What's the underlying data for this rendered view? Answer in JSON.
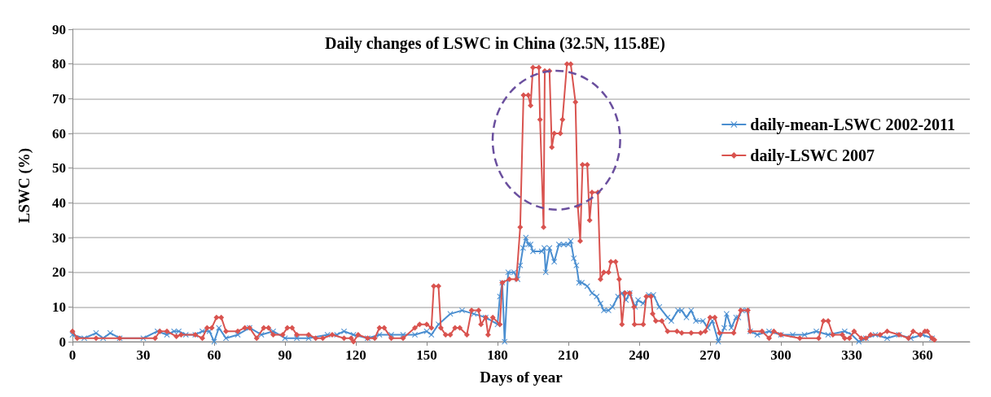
{
  "chart_data": {
    "type": "line",
    "title": "Daily changes of LSWC in China (32.5N, 115.8E)",
    "xlabel": "Days of year",
    "ylabel": "LSWC (%)",
    "xlim": [
      0,
      380
    ],
    "xticks": [
      0,
      30,
      60,
      90,
      120,
      150,
      180,
      210,
      240,
      270,
      300,
      330,
      360
    ],
    "ylim": [
      0,
      90
    ],
    "yticks": [
      0,
      10,
      20,
      30,
      40,
      50,
      60,
      70,
      80,
      90
    ],
    "grid": "y",
    "legend": "top right",
    "line_style": "solid",
    "series": [
      {
        "name": "daily-mean-LSWC 2002-2011",
        "color": "#4a8ed0",
        "marker": "cross",
        "x": [
          0,
          5,
          10,
          13,
          16,
          20,
          30,
          36,
          40,
          43,
          45,
          48,
          52,
          55,
          58,
          60,
          62,
          65,
          70,
          75,
          80,
          85,
          90,
          95,
          100,
          108,
          112,
          115,
          119,
          125,
          130,
          135,
          140,
          145,
          150,
          152,
          155,
          160,
          165,
          170,
          175,
          180,
          181,
          182,
          183,
          184.5,
          187,
          188.5,
          189.6,
          190.8,
          192,
          193,
          194,
          195,
          198.7,
          199.8,
          200.4,
          202,
          204,
          206,
          208,
          210,
          211,
          212.3,
          213.4,
          214.5,
          215.7,
          218,
          220,
          222,
          223.6,
          225,
          227,
          228.7,
          231,
          232.7,
          234.4,
          236,
          238.3,
          239.5,
          241.7,
          244,
          246,
          248.5,
          252,
          253.6,
          256.4,
          258,
          260,
          262,
          264,
          267,
          269,
          271,
          273.5,
          276,
          277,
          279,
          281,
          282,
          283.5,
          285.7,
          287,
          290,
          295,
          300,
          305,
          310,
          315,
          320,
          327,
          330,
          333,
          336,
          340,
          345,
          350,
          355,
          360,
          364
        ],
        "values": [
          2,
          1,
          2.5,
          1,
          2.5,
          1,
          1,
          3,
          2,
          3,
          3,
          2,
          2,
          3,
          3,
          0,
          4,
          1,
          2,
          4,
          2,
          3,
          1,
          1,
          1,
          2,
          2,
          3,
          2,
          1,
          2,
          2,
          2,
          2,
          3,
          2,
          5,
          8,
          9,
          8,
          7,
          5,
          13,
          17,
          0,
          20,
          20,
          18,
          22,
          27,
          30,
          28,
          28,
          26,
          26,
          27,
          20,
          27,
          23,
          28,
          28,
          28,
          29,
          24,
          22,
          17,
          17,
          16,
          14,
          13,
          11,
          9,
          9,
          10,
          13,
          14,
          12,
          14,
          10,
          12,
          11,
          13.5,
          13.5,
          10,
          7,
          6,
          9,
          9,
          7,
          9,
          6,
          6,
          4,
          6,
          0,
          4,
          8,
          4,
          7,
          7,
          9,
          9,
          3,
          2,
          3,
          2,
          2,
          2,
          3,
          2,
          3,
          2,
          0,
          1,
          2,
          1,
          2,
          1,
          2,
          1
        ]
      },
      {
        "name": "daily-LSWC 2007",
        "color": "#d9534f",
        "marker": "diamond",
        "x": [
          0,
          2,
          10,
          20,
          35,
          37,
          40,
          44,
          46,
          52,
          55,
          57,
          59,
          61,
          63,
          65,
          70,
          73,
          75,
          78,
          81,
          83,
          85,
          89,
          91,
          93,
          95,
          100,
          103,
          106,
          110,
          115,
          118,
          119,
          121,
          125,
          128,
          130,
          132,
          135,
          140,
          145,
          147,
          150,
          152,
          153,
          155,
          156,
          158,
          160,
          162,
          164,
          167,
          169,
          172,
          173,
          175,
          176,
          178,
          181,
          182,
          185,
          188,
          189.6,
          191,
          193,
          194,
          195,
          197.5,
          198,
          199.5,
          200,
          202,
          203,
          204,
          206.6,
          207.5,
          209.4,
          211,
          213,
          214,
          215,
          216,
          218,
          219,
          220,
          222.5,
          223.6,
          225,
          227,
          228,
          230,
          231.5,
          232.7,
          234,
          236,
          237.8,
          238,
          241.7,
          243,
          245,
          245.7,
          247,
          249.6,
          252,
          256,
          258,
          262,
          266,
          268,
          270,
          272,
          274,
          280,
          283,
          286,
          287,
          292,
          295,
          297,
          300,
          308,
          316,
          318,
          320,
          322,
          326,
          327,
          329,
          331,
          334,
          336,
          338,
          342,
          345,
          350,
          354,
          356,
          359,
          361,
          362,
          364,
          365
        ],
        "values": [
          3,
          1,
          1,
          1,
          1,
          3,
          3,
          1.5,
          2,
          2,
          1,
          4,
          4,
          7,
          7,
          3,
          3,
          4,
          4,
          1,
          4,
          4,
          2,
          2,
          4,
          4,
          2,
          2,
          1,
          1,
          2,
          1,
          1,
          0,
          2,
          1,
          1,
          4,
          4,
          1,
          1,
          4,
          5,
          5,
          4,
          16,
          16,
          4,
          2,
          2,
          4,
          4,
          2,
          9,
          9,
          5,
          7,
          2,
          7,
          5,
          17,
          18,
          18,
          33,
          71,
          71,
          68,
          79,
          79,
          64,
          33,
          78,
          78,
          56,
          60,
          60,
          64,
          80,
          80,
          69,
          39,
          29,
          51,
          51,
          35,
          43,
          43,
          18,
          20,
          20,
          23,
          23,
          18,
          5,
          14,
          14,
          10,
          5,
          5,
          13,
          13,
          8,
          6,
          6,
          3,
          3,
          2.5,
          2.5,
          2.5,
          3,
          7,
          7,
          2.5,
          2.5,
          9,
          9,
          3,
          3,
          1,
          3,
          2,
          1,
          1,
          6,
          6,
          2,
          2,
          1,
          1,
          3,
          1,
          1,
          2,
          2,
          3,
          2,
          1,
          3,
          2,
          3,
          3,
          1,
          0.5
        ]
      }
    ]
  }
}
